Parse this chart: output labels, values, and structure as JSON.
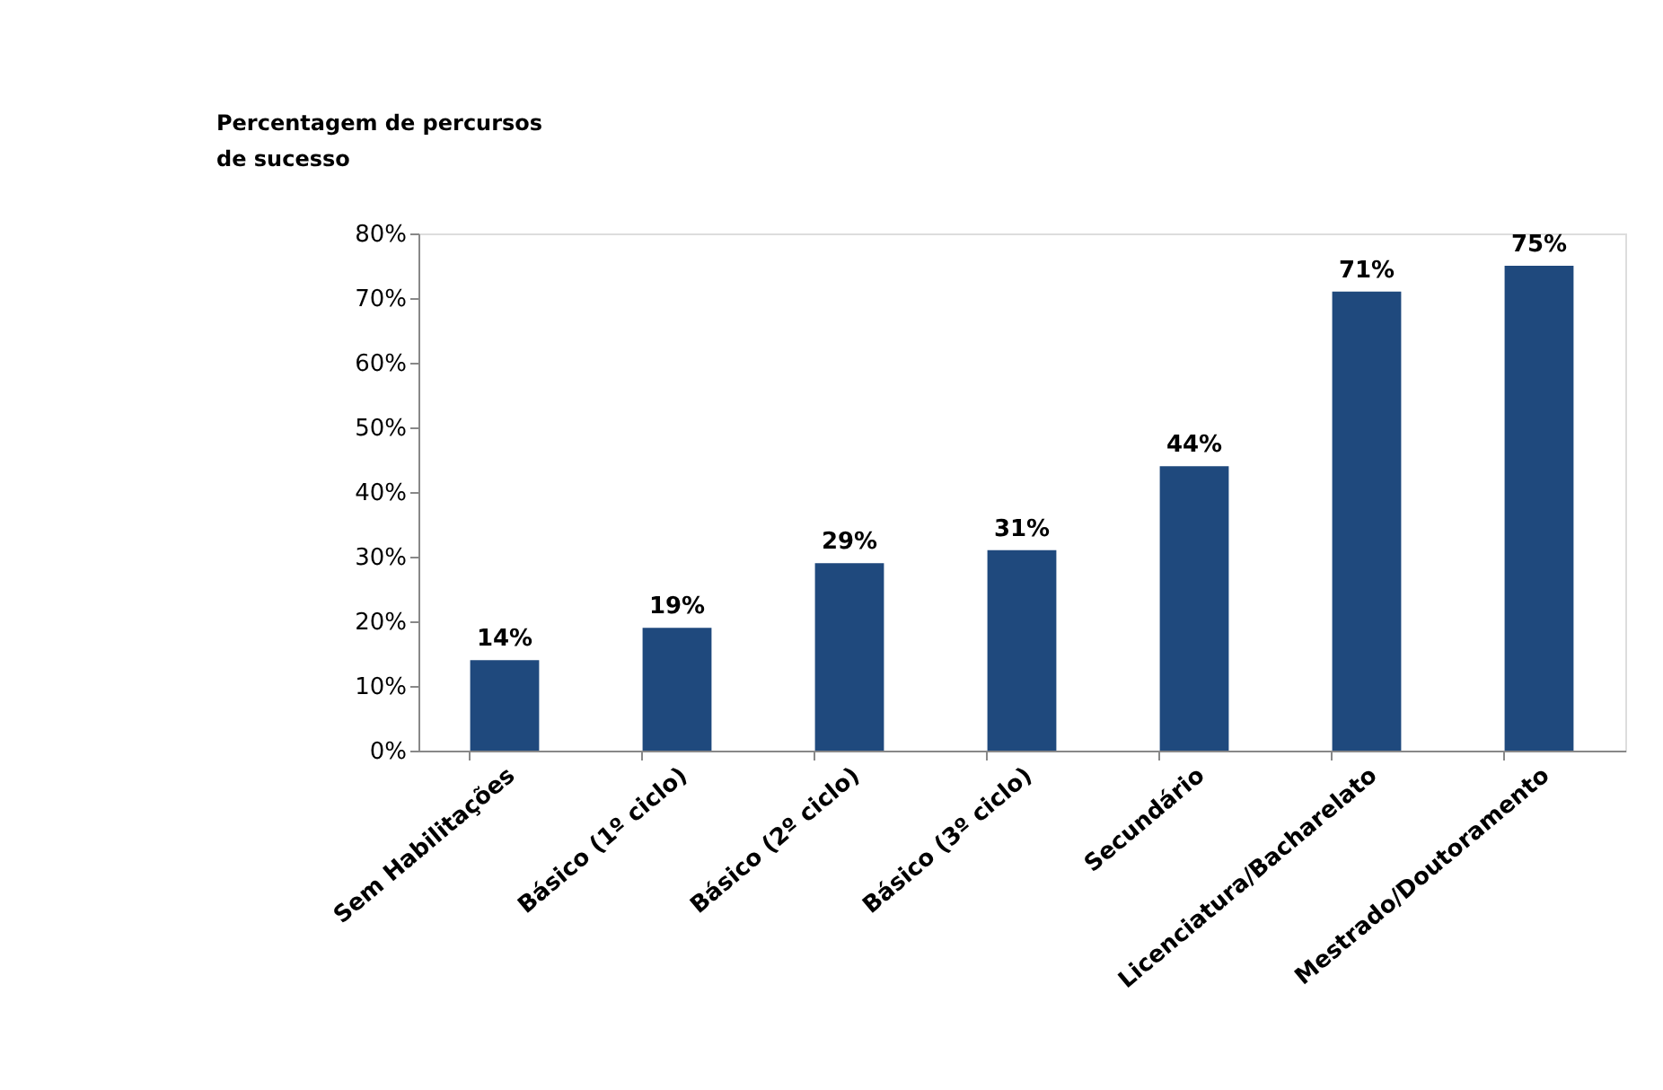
{
  "chart_data": {
    "type": "bar",
    "ylabel": "Percentagem de percursos de sucesso",
    "categories": [
      "Sem Habilitações",
      "Básico (1º ciclo)",
      "Básico (2º ciclo)",
      "Básico (3º ciclo)",
      "Secundário",
      "Licenciatura/Bacharelato",
      "Mestrado/Doutoramento"
    ],
    "values": [
      14,
      19,
      29,
      31,
      44,
      71,
      75
    ],
    "value_labels": [
      "14%",
      "19%",
      "29%",
      "31%",
      "44%",
      "71%",
      "75%"
    ],
    "color": "#1f497d",
    "ylim": [
      0,
      80
    ],
    "yticks": [
      {
        "value": 0,
        "label": "0%"
      },
      {
        "value": 10,
        "label": "10%"
      },
      {
        "value": 20,
        "label": "20%"
      },
      {
        "value": 30,
        "label": "30%"
      },
      {
        "value": 40,
        "label": "40%"
      },
      {
        "value": 50,
        "label": "50%"
      },
      {
        "value": 60,
        "label": "60%"
      },
      {
        "value": 70,
        "label": "70%"
      },
      {
        "value": 80,
        "label": "80%"
      }
    ],
    "grid": false
  }
}
